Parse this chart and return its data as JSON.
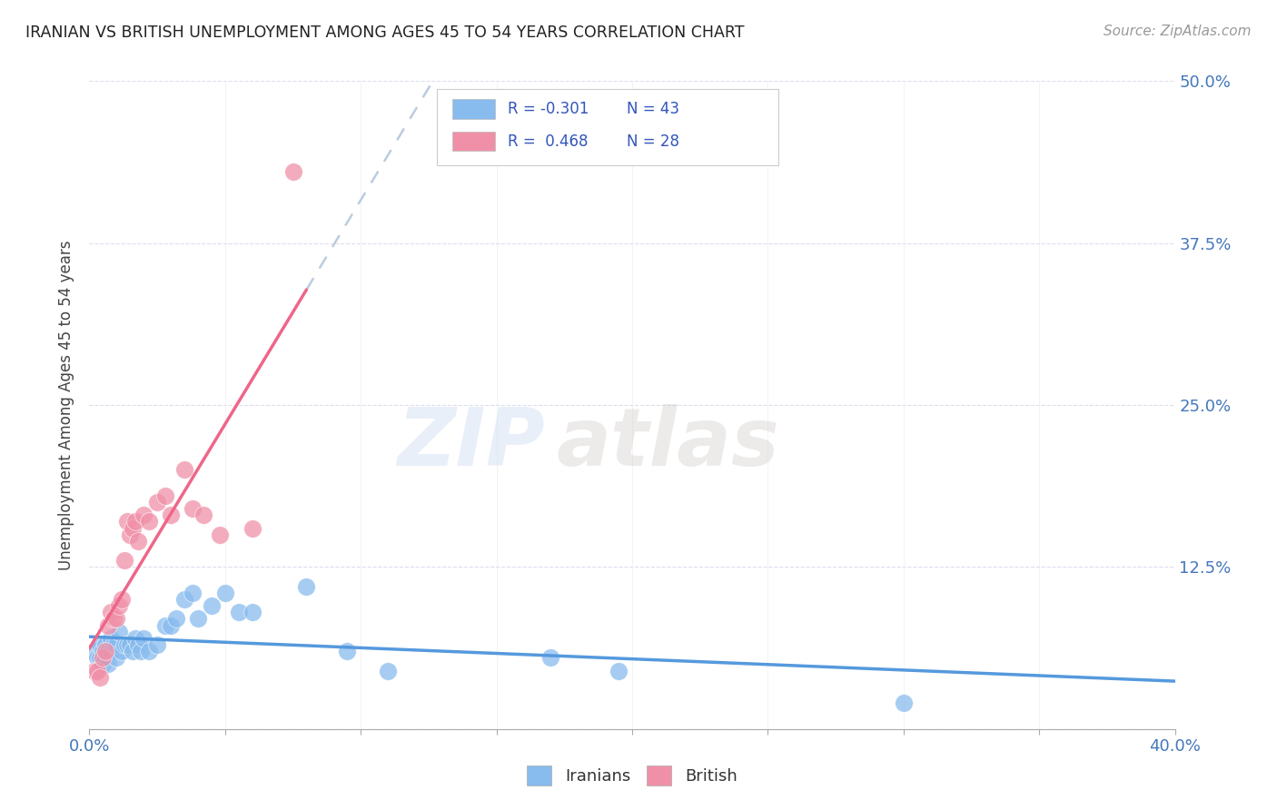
{
  "title": "IRANIAN VS BRITISH UNEMPLOYMENT AMONG AGES 45 TO 54 YEARS CORRELATION CHART",
  "source": "Source: ZipAtlas.com",
  "ylabel": "Unemployment Among Ages 45 to 54 years",
  "xlim": [
    0.0,
    0.4
  ],
  "ylim": [
    0.0,
    0.5
  ],
  "xticks": [
    0.0,
    0.05,
    0.1,
    0.15,
    0.2,
    0.25,
    0.3,
    0.35,
    0.4
  ],
  "yticks": [
    0.0,
    0.125,
    0.25,
    0.375,
    0.5
  ],
  "iranians_color": "#88bbee",
  "british_color": "#f090a8",
  "trendline_iranian_color": "#5599dd",
  "trendline_british_color": "#ee6688",
  "trendline_dash_color": "#bbccdd",
  "watermark_zip": "ZIP",
  "watermark_atlas": "atlas",
  "legend_entries": [
    {
      "label_r": "R = -0.301",
      "label_n": "N = 43",
      "color": "#aaccee"
    },
    {
      "label_r": "R =  0.468",
      "label_n": "N = 28",
      "color": "#f4aabb"
    }
  ],
  "iranians_x": [
    0.002,
    0.003,
    0.004,
    0.004,
    0.005,
    0.005,
    0.006,
    0.006,
    0.007,
    0.007,
    0.008,
    0.008,
    0.009,
    0.01,
    0.01,
    0.011,
    0.012,
    0.013,
    0.014,
    0.015,
    0.016,
    0.017,
    0.018,
    0.019,
    0.02,
    0.022,
    0.025,
    0.028,
    0.03,
    0.032,
    0.035,
    0.038,
    0.04,
    0.045,
    0.05,
    0.055,
    0.06,
    0.08,
    0.095,
    0.11,
    0.17,
    0.195,
    0.3
  ],
  "iranians_y": [
    0.06,
    0.055,
    0.055,
    0.065,
    0.05,
    0.06,
    0.055,
    0.065,
    0.05,
    0.06,
    0.06,
    0.07,
    0.065,
    0.055,
    0.065,
    0.075,
    0.06,
    0.065,
    0.065,
    0.065,
    0.06,
    0.07,
    0.065,
    0.06,
    0.07,
    0.06,
    0.065,
    0.08,
    0.08,
    0.085,
    0.1,
    0.105,
    0.085,
    0.095,
    0.105,
    0.09,
    0.09,
    0.11,
    0.06,
    0.045,
    0.055,
    0.045,
    0.02
  ],
  "british_x": [
    0.002,
    0.003,
    0.004,
    0.005,
    0.006,
    0.007,
    0.008,
    0.009,
    0.01,
    0.011,
    0.012,
    0.013,
    0.014,
    0.015,
    0.016,
    0.017,
    0.018,
    0.02,
    0.022,
    0.025,
    0.028,
    0.03,
    0.035,
    0.038,
    0.042,
    0.048,
    0.06,
    0.075
  ],
  "british_y": [
    0.045,
    0.045,
    0.04,
    0.055,
    0.06,
    0.08,
    0.09,
    0.085,
    0.085,
    0.095,
    0.1,
    0.13,
    0.16,
    0.15,
    0.155,
    0.16,
    0.145,
    0.165,
    0.16,
    0.175,
    0.18,
    0.165,
    0.2,
    0.17,
    0.165,
    0.15,
    0.155,
    0.43
  ]
}
